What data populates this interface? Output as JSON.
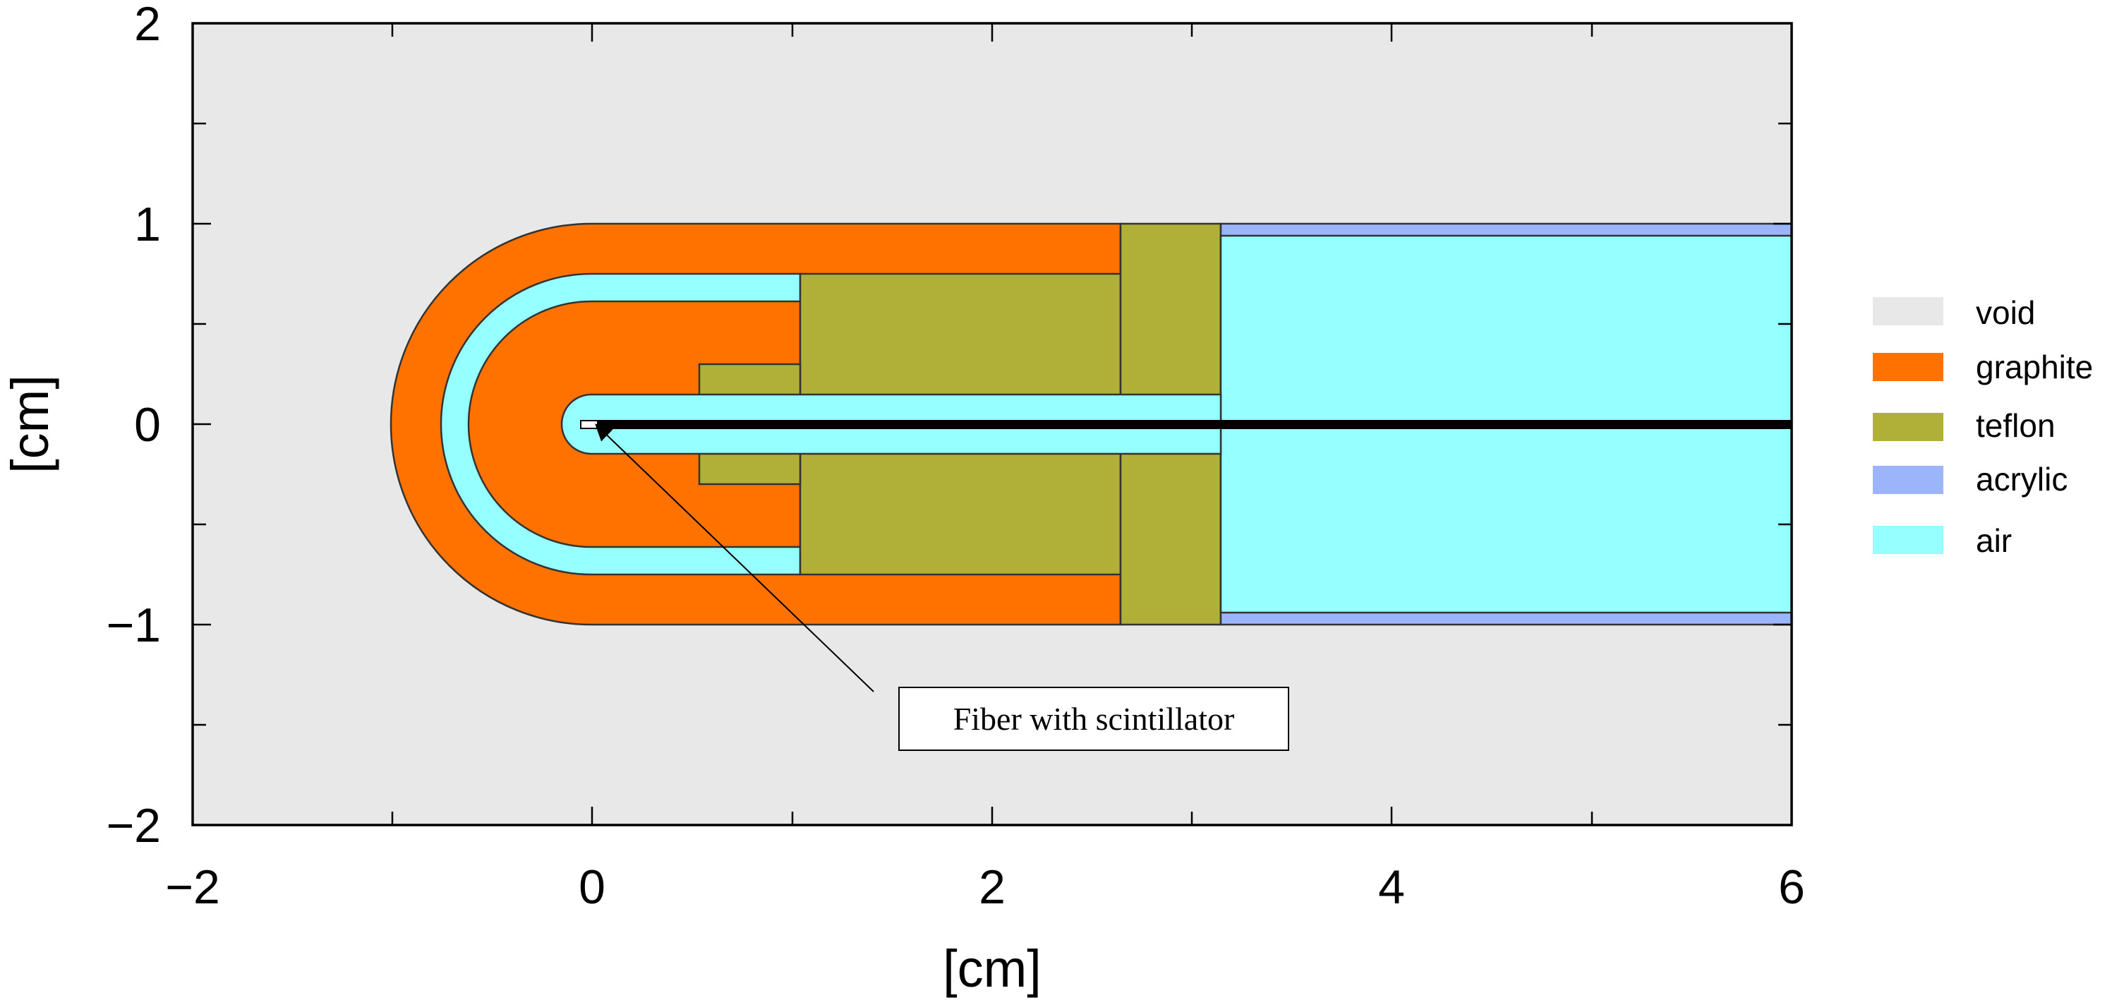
{
  "axes": {
    "x_title": "[cm]",
    "y_title": "[cm]",
    "x_range": [
      -2,
      6
    ],
    "y_range": [
      -2,
      2
    ],
    "x_tick_labels": [
      "−2",
      "0",
      "2",
      "4",
      "6"
    ],
    "y_tick_labels": [
      "2",
      "1",
      "0",
      "−1",
      "−2"
    ]
  },
  "legend": {
    "placement": "right",
    "items": [
      {
        "label": "void",
        "color": "#e8e8e8"
      },
      {
        "label": "graphite",
        "color": "#ff7200"
      },
      {
        "label": "teflon",
        "color": "#b0b038"
      },
      {
        "label": "acrylic",
        "color": "#9bb4fa"
      },
      {
        "label": "air",
        "color": "#96ffff"
      }
    ]
  },
  "callout": {
    "text": "Fiber with scintillator"
  }
}
